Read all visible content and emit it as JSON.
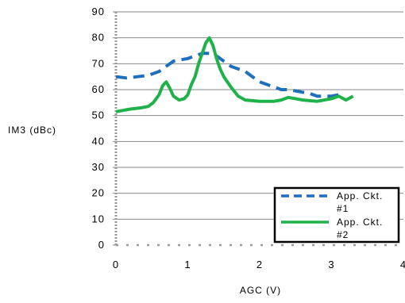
{
  "chart_data": {
    "type": "line",
    "xlabel": "AGC (V)",
    "ylabel": "IM3 (dBc)",
    "xlim": [
      0,
      4
    ],
    "ylim": [
      0,
      90
    ],
    "x_ticks": [
      "0",
      "1",
      "2",
      "3",
      "4"
    ],
    "y_ticks": [
      "0",
      "10",
      "20",
      "30",
      "40",
      "50",
      "60",
      "70",
      "80",
      "90"
    ],
    "grid": "horizontal",
    "legend_position": "bottom-right",
    "series": [
      {
        "name": "App. Ckt. #1",
        "color": "#1f6fbf",
        "style": "dashed",
        "points": [
          [
            0.0,
            65
          ],
          [
            0.15,
            64.5
          ],
          [
            0.3,
            65
          ],
          [
            0.45,
            65.5
          ],
          [
            0.6,
            67
          ],
          [
            0.7,
            69
          ],
          [
            0.8,
            71
          ],
          [
            0.9,
            71.5
          ],
          [
            1.0,
            72
          ],
          [
            1.1,
            73
          ],
          [
            1.2,
            74
          ],
          [
            1.3,
            74
          ],
          [
            1.4,
            73
          ],
          [
            1.5,
            71
          ],
          [
            1.6,
            69
          ],
          [
            1.7,
            68
          ],
          [
            1.8,
            67
          ],
          [
            1.9,
            65
          ],
          [
            2.0,
            63
          ],
          [
            2.1,
            62
          ],
          [
            2.2,
            61
          ],
          [
            2.3,
            60
          ],
          [
            2.4,
            60
          ],
          [
            2.5,
            59.5
          ],
          [
            2.6,
            59
          ],
          [
            2.7,
            58.5
          ],
          [
            2.8,
            57.5
          ],
          [
            2.9,
            57.5
          ],
          [
            3.0,
            57.5
          ],
          [
            3.1,
            58
          ]
        ]
      },
      {
        "name": "App. Ckt. #2",
        "color": "#1fb24a",
        "style": "solid",
        "points": [
          [
            0.0,
            51.5
          ],
          [
            0.2,
            52.5
          ],
          [
            0.35,
            53
          ],
          [
            0.45,
            53.5
          ],
          [
            0.52,
            55
          ],
          [
            0.6,
            58
          ],
          [
            0.65,
            61.5
          ],
          [
            0.7,
            63
          ],
          [
            0.75,
            60.5
          ],
          [
            0.8,
            57.5
          ],
          [
            0.88,
            56
          ],
          [
            0.95,
            56.5
          ],
          [
            1.0,
            58
          ],
          [
            1.05,
            62
          ],
          [
            1.1,
            65
          ],
          [
            1.15,
            70
          ],
          [
            1.2,
            74
          ],
          [
            1.25,
            78
          ],
          [
            1.3,
            80
          ],
          [
            1.35,
            77
          ],
          [
            1.4,
            72
          ],
          [
            1.45,
            68
          ],
          [
            1.5,
            65
          ],
          [
            1.6,
            61
          ],
          [
            1.7,
            57.5
          ],
          [
            1.8,
            56
          ],
          [
            2.0,
            55.5
          ],
          [
            2.2,
            55.5
          ],
          [
            2.3,
            56
          ],
          [
            2.4,
            57
          ],
          [
            2.6,
            56
          ],
          [
            2.8,
            55.5
          ],
          [
            3.0,
            56.5
          ],
          [
            3.1,
            57.5
          ],
          [
            3.2,
            56
          ],
          [
            3.3,
            57.5
          ]
        ]
      }
    ],
    "legend": {
      "entries": [
        {
          "line1": "App. Ckt.",
          "line2": "#1"
        },
        {
          "line1": "App. Ckt.",
          "line2": "#2"
        }
      ]
    }
  }
}
